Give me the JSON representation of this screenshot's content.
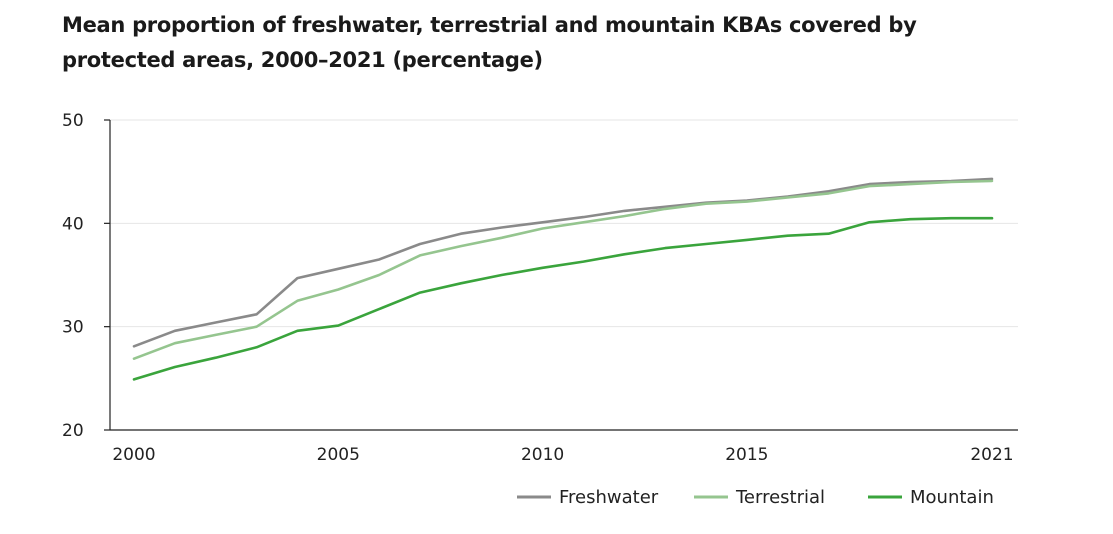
{
  "chart_data": {
    "type": "line",
    "title_lines": [
      "Mean proportion of freshwater, terrestrial and mountain KBAs covered by",
      "protected areas, 2000–2021 (percentage)"
    ],
    "xlabel": "",
    "ylabel": "",
    "xlim": [
      2000,
      2021
    ],
    "ylim": [
      20,
      50
    ],
    "x_ticks": [
      2000,
      2005,
      2010,
      2015,
      2021
    ],
    "y_ticks": [
      20,
      30,
      40,
      50
    ],
    "grid": true,
    "legend_position": "bottom-right",
    "x": [
      2000,
      2001,
      2002,
      2003,
      2004,
      2005,
      2006,
      2007,
      2008,
      2009,
      2010,
      2011,
      2012,
      2013,
      2014,
      2015,
      2016,
      2017,
      2018,
      2019,
      2020,
      2021
    ],
    "series": [
      {
        "name": "Freshwater",
        "color": "#8a8a8a",
        "values": [
          28.1,
          29.6,
          30.4,
          31.2,
          34.7,
          35.6,
          36.5,
          38.0,
          39.0,
          39.6,
          40.1,
          40.6,
          41.2,
          41.6,
          42.0,
          42.2,
          42.6,
          43.1,
          43.8,
          44.0,
          44.1,
          44.3
        ]
      },
      {
        "name": "Terrestrial",
        "color": "#95c58f",
        "values": [
          26.9,
          28.4,
          29.2,
          30.0,
          32.5,
          33.6,
          35.0,
          36.9,
          37.8,
          38.6,
          39.5,
          40.1,
          40.7,
          41.4,
          41.9,
          42.1,
          42.5,
          42.9,
          43.6,
          43.8,
          44.0,
          44.1
        ]
      },
      {
        "name": "Mountain",
        "color": "#3aa43c",
        "values": [
          24.9,
          26.1,
          27.0,
          28.0,
          29.6,
          30.1,
          31.7,
          33.3,
          34.2,
          35.0,
          35.7,
          36.3,
          37.0,
          37.6,
          38.0,
          38.4,
          38.8,
          39.0,
          40.1,
          40.4,
          40.5,
          40.5
        ]
      }
    ]
  }
}
